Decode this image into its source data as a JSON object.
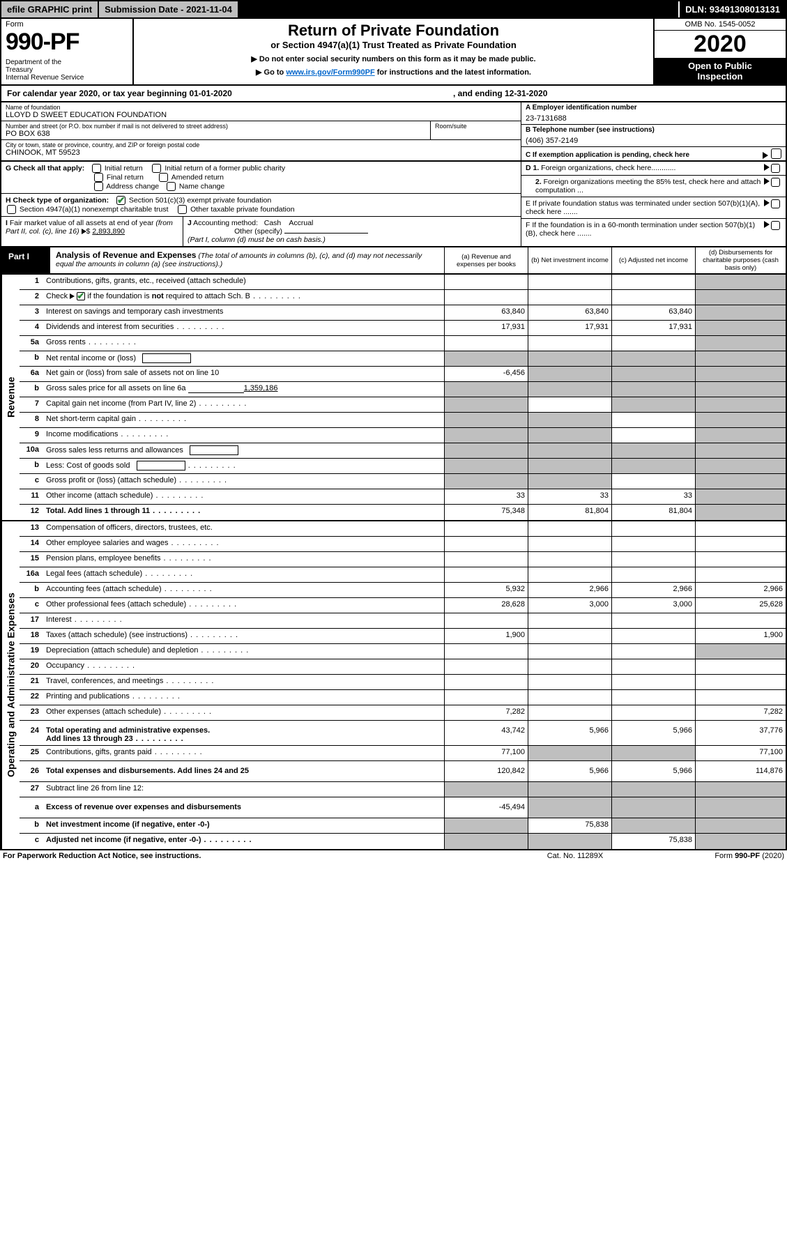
{
  "topbar": {
    "efile": "efile GRAPHIC print",
    "submission": "Submission Date - 2021-11-04",
    "dln": "DLN: 93491308013131"
  },
  "header": {
    "formword": "Form",
    "formnum": "990-PF",
    "dept": "Department of the Treasury\nInternal Revenue Service",
    "title": "Return of Private Foundation",
    "subtitle": "or Section 4947(a)(1) Trust Treated as Private Foundation",
    "note1": "▶ Do not enter social security numbers on this form as it may be made public.",
    "note2_pre": "▶ Go to ",
    "note2_link": "www.irs.gov/Form990PF",
    "note2_post": " for instructions and the latest information.",
    "omb": "OMB No. 1545-0052",
    "year": "2020",
    "public": "Open to Public Inspection"
  },
  "calrow": {
    "text1": "For calendar year 2020, or tax year beginning 01-01-2020",
    "text2": ", and ending 12-31-2020"
  },
  "ident": {
    "name_lbl": "Name of foundation",
    "name_val": "LLOYD D SWEET EDUCATION FOUNDATION",
    "addr_lbl": "Number and street (or P.O. box number if mail is not delivered to street address)",
    "addr_val": "PO BOX 638",
    "room_lbl": "Room/suite",
    "city_lbl": "City or town, state or province, country, and ZIP or foreign postal code",
    "city_val": "CHINOOK, MT  59523",
    "a_lbl": "A Employer identification number",
    "a_val": "23-7131688",
    "b_lbl": "B Telephone number (see instructions)",
    "b_val": "(406) 357-2149",
    "c_lbl": "C If exemption application is pending, check here"
  },
  "checks": {
    "g_lbl": "G Check all that apply:",
    "g_opts": [
      "Initial return",
      "Initial return of a former public charity",
      "Final return",
      "Amended return",
      "Address change",
      "Name change"
    ],
    "h_lbl": "H Check type of organization:",
    "h_opt1": "Section 501(c)(3) exempt private foundation",
    "h_opt2": "Section 4947(a)(1) nonexempt charitable trust",
    "h_opt3": "Other taxable private foundation",
    "i_lbl": "I Fair market value of all assets at end of year (from Part II, col. (c), line 16) ▶ $",
    "i_val": "2,893,890",
    "j_lbl": "J Accounting method:",
    "j_cash": "Cash",
    "j_accrual": "Accrual",
    "j_other": "Other (specify)",
    "j_note": "(Part I, column (d) must be on cash basis.)",
    "d1": "D 1. Foreign organizations, check here............",
    "d2": "2. Foreign organizations meeting the 85% test, check here and attach computation ...",
    "e": "E  If private foundation status was terminated under section 507(b)(1)(A), check here .......",
    "f": "F  If the foundation is in a 60-month termination under section 507(b)(1)(B), check here ......."
  },
  "part1": {
    "label": "Part I",
    "title": "Analysis of Revenue and Expenses",
    "note": "(The total of amounts in columns (b), (c), and (d) may not necessarily equal the amounts in column (a) (see instructions).)",
    "cols": {
      "a": "(a)   Revenue and expenses per books",
      "b": "(b)  Net investment income",
      "c": "(c)  Adjusted net income",
      "d": "(d)  Disbursements for charitable purposes (cash basis only)"
    }
  },
  "side": {
    "rev": "Revenue",
    "exp": "Operating and Administrative Expenses"
  },
  "rows_rev": [
    {
      "n": "1",
      "d": "Contributions, gifts, grants, etc., received (attach schedule)",
      "a": "",
      "b": "",
      "c": "",
      "dS": true
    },
    {
      "n": "2",
      "d": "Check ▶ ☑ if the foundation is not required to attach Sch. B",
      "a": "",
      "b": "",
      "c": "",
      "dS": true,
      "cb": true,
      "dots": true
    },
    {
      "n": "3",
      "d": "Interest on savings and temporary cash investments",
      "a": "63,840",
      "b": "63,840",
      "c": "63,840",
      "dS": true
    },
    {
      "n": "4",
      "d": "Dividends and interest from securities",
      "a": "17,931",
      "b": "17,931",
      "c": "17,931",
      "dS": true,
      "dots": true
    },
    {
      "n": "5a",
      "d": "Gross rents",
      "a": "",
      "b": "",
      "c": "",
      "dS": true,
      "dots": true
    },
    {
      "n": "b",
      "d": "Net rental income or (loss)",
      "aS": true,
      "bS": true,
      "cS": true,
      "dS": true,
      "box": true
    },
    {
      "n": "6a",
      "d": "Net gain or (loss) from sale of assets not on line 10",
      "a": "-6,456",
      "bS": true,
      "cS": true,
      "dS": true
    },
    {
      "n": "b",
      "d": "Gross sales price for all assets on line 6a",
      "val": "1,359,186",
      "aS": true,
      "bS": true,
      "cS": true,
      "dS": true,
      "fill": true
    },
    {
      "n": "7",
      "d": "Capital gain net income (from Part IV, line 2)",
      "aS": true,
      "b": "",
      "cS": true,
      "dS": true,
      "dots": true
    },
    {
      "n": "8",
      "d": "Net short-term capital gain",
      "aS": true,
      "bS": true,
      "c": "",
      "dS": true,
      "dots": true
    },
    {
      "n": "9",
      "d": "Income modifications",
      "aS": true,
      "bS": true,
      "c": "",
      "dS": true,
      "dots": true
    },
    {
      "n": "10a",
      "d": "Gross sales less returns and allowances",
      "aS": true,
      "bS": true,
      "cS": true,
      "dS": true,
      "box": true
    },
    {
      "n": "b",
      "d": "Less: Cost of goods sold",
      "aS": true,
      "bS": true,
      "cS": true,
      "dS": true,
      "box": true,
      "dots": true
    },
    {
      "n": "c",
      "d": "Gross profit or (loss) (attach schedule)",
      "aS": true,
      "bS": true,
      "c": "",
      "dS": true,
      "dots": true
    },
    {
      "n": "11",
      "d": "Other income (attach schedule)",
      "a": "33",
      "b": "33",
      "c": "33",
      "dS": true,
      "dots": true
    },
    {
      "n": "12",
      "d": "Total. Add lines 1 through 11",
      "a": "75,348",
      "b": "81,804",
      "c": "81,804",
      "dS": true,
      "bold": true,
      "dots": true
    }
  ],
  "rows_exp": [
    {
      "n": "13",
      "d": "Compensation of officers, directors, trustees, etc."
    },
    {
      "n": "14",
      "d": "Other employee salaries and wages",
      "dots": true
    },
    {
      "n": "15",
      "d": "Pension plans, employee benefits",
      "dots": true
    },
    {
      "n": "16a",
      "d": "Legal fees (attach schedule)",
      "dots": true
    },
    {
      "n": "b",
      "d": "Accounting fees (attach schedule)",
      "a": "5,932",
      "b": "2,966",
      "c": "2,966",
      "dd": "2,966",
      "dots": true
    },
    {
      "n": "c",
      "d": "Other professional fees (attach schedule)",
      "a": "28,628",
      "b": "3,000",
      "c": "3,000",
      "dd": "25,628",
      "dots": true
    },
    {
      "n": "17",
      "d": "Interest",
      "dots": true
    },
    {
      "n": "18",
      "d": "Taxes (attach schedule) (see instructions)",
      "a": "1,900",
      "dd": "1,900",
      "dots": true
    },
    {
      "n": "19",
      "d": "Depreciation (attach schedule) and depletion",
      "ddS": true,
      "dots": true
    },
    {
      "n": "20",
      "d": "Occupancy",
      "dots": true
    },
    {
      "n": "21",
      "d": "Travel, conferences, and meetings",
      "dots": true
    },
    {
      "n": "22",
      "d": "Printing and publications",
      "dots": true
    },
    {
      "n": "23",
      "d": "Other expenses (attach schedule)",
      "a": "7,282",
      "dd": "7,282",
      "dots": true
    },
    {
      "n": "24",
      "d": "Total operating and administrative expenses. Add lines 13 through 23",
      "a": "43,742",
      "b": "5,966",
      "c": "5,966",
      "dd": "37,776",
      "bold": true,
      "dots": true,
      "tall": true
    },
    {
      "n": "25",
      "d": "Contributions, gifts, grants paid",
      "a": "77,100",
      "bS": true,
      "cS": true,
      "dd": "77,100",
      "dots": true
    },
    {
      "n": "26",
      "d": "Total expenses and disbursements. Add lines 24 and 25",
      "a": "120,842",
      "b": "5,966",
      "c": "5,966",
      "dd": "114,876",
      "bold": true,
      "tall": true
    },
    {
      "n": "27",
      "d": "Subtract line 26 from line 12:",
      "aS": true,
      "bS": true,
      "cS": true,
      "ddS": true
    },
    {
      "n": "a",
      "d": "Excess of revenue over expenses and disbursements",
      "a": "-45,494",
      "bS": true,
      "cS": true,
      "ddS": true,
      "bold": true,
      "tall": true
    },
    {
      "n": "b",
      "d": "Net investment income (if negative, enter -0-)",
      "aS": true,
      "b": "75,838",
      "cS": true,
      "ddS": true,
      "bold": true
    },
    {
      "n": "c",
      "d": "Adjusted net income (if negative, enter -0-)",
      "aS": true,
      "bS": true,
      "c": "75,838",
      "ddS": true,
      "bold": true,
      "dots": true
    }
  ],
  "footer": {
    "f1": "For Paperwork Reduction Act Notice, see instructions.",
    "f2": "Cat. No. 11289X",
    "f3": "Form 990-PF (2020)"
  },
  "colors": {
    "shade": "#bfbfbf",
    "link": "#0066cc",
    "check": "#2e8b3d"
  }
}
